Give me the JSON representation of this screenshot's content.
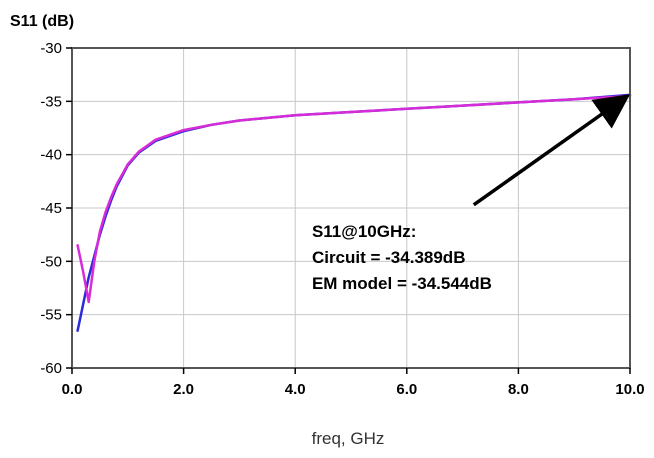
{
  "chart_data": {
    "type": "line",
    "ylabel": "S11 (dB)",
    "xlabel": "freq, GHz",
    "xlim": [
      0,
      10
    ],
    "ylim": [
      -60,
      -30
    ],
    "x_ticks": [
      0,
      2,
      4,
      6,
      8,
      10
    ],
    "x_tick_labels": [
      "0.0",
      "2.0",
      "4.0",
      "6.0",
      "8.0",
      "10.0"
    ],
    "y_ticks": [
      -60,
      -55,
      -50,
      -45,
      -40,
      -35,
      -30
    ],
    "y_tick_labels": [
      "-60",
      "-55",
      "-50",
      "-45",
      "-40",
      "-35",
      "-30"
    ],
    "grid": true,
    "series": [
      {
        "color": "#2b2bd8",
        "x": [
          0.1,
          0.2,
          0.3,
          0.4,
          0.5,
          0.6,
          0.7,
          0.8,
          1.0,
          1.2,
          1.5,
          2.0,
          2.5,
          3.0,
          4.0,
          5.0,
          6.0,
          7.0,
          8.0,
          9.0,
          10.0
        ],
        "y": [
          -56.5,
          -54.0,
          -51.5,
          -49.5,
          -47.5,
          -45.8,
          -44.3,
          -43.0,
          -41.0,
          -39.8,
          -38.7,
          -37.8,
          -37.2,
          -36.8,
          -36.3,
          -36.0,
          -35.7,
          -35.4,
          -35.1,
          -34.8,
          -34.4
        ]
      },
      {
        "color": "#d82bd8",
        "x": [
          0.1,
          0.2,
          0.3,
          0.4,
          0.5,
          0.6,
          0.7,
          0.8,
          1.0,
          1.2,
          1.5,
          2.0,
          2.5,
          3.0,
          4.0,
          5.0,
          6.0,
          7.0,
          8.0,
          9.0,
          10.0
        ],
        "y": [
          -48.5,
          -51.0,
          -53.8,
          -50.0,
          -47.2,
          -45.4,
          -44.0,
          -42.8,
          -40.9,
          -39.7,
          -38.6,
          -37.7,
          -37.2,
          -36.8,
          -36.3,
          -36.0,
          -35.7,
          -35.4,
          -35.1,
          -34.8,
          -34.5
        ]
      }
    ],
    "annotation": {
      "lines": [
        "S11@10GHz:",
        "Circuit = -34.389dB",
        "EM model = -34.544dB"
      ],
      "arrow_to": [
        9.9,
        -34.7
      ],
      "arrow_from": [
        7.2,
        -44.7
      ],
      "text_anchor": [
        4.3,
        -47.7
      ]
    }
  }
}
